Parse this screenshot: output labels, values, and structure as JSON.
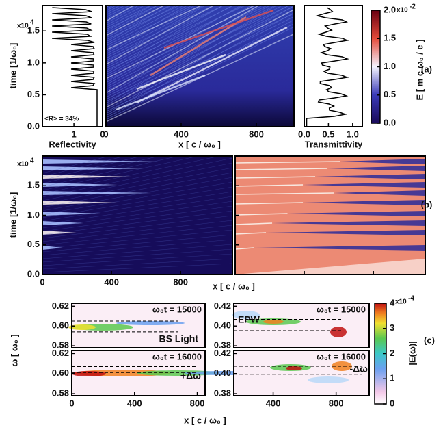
{
  "panels": {
    "a": {
      "label": "(a)",
      "y_label": "time [1/ω₀]",
      "y_multiplier": "x10",
      "y_exponent": "4",
      "reflectivity": {
        "x_label": "Reflectivity",
        "annotation": "<R> = 34%",
        "xlim": [
          2.1,
          0
        ],
        "xticks": [
          1,
          0
        ],
        "ylim": [
          0,
          1.9
        ],
        "yticks": [
          {
            "value": 0,
            "label": "0.0"
          },
          0.5,
          {
            "value": 1,
            "label": "1.0"
          },
          1.5
        ]
      },
      "field": {
        "x_label": "x [ c / ω₀ ]",
        "xlim": [
          0,
          1000
        ],
        "xticks": [
          0,
          400,
          800
        ]
      },
      "transmittivity": {
        "x_label": "Transmittivity",
        "xlim": [
          0,
          1.2
        ],
        "xticks": [
          {
            "value": 0,
            "label": "0.0"
          },
          0.5,
          {
            "value": 1,
            "label": "1.0"
          }
        ]
      },
      "colorbar": {
        "label": "E [ m c ω₀ / e ]",
        "multiplier": "x10",
        "exponent": "-2",
        "ylim": [
          0,
          2
        ],
        "yticks": [
          {
            "value": 0,
            "label": "0.0"
          },
          0.5,
          {
            "value": 1,
            "label": "1.0"
          },
          1.5,
          {
            "value": 2,
            "label": "2.0"
          }
        ]
      }
    },
    "b": {
      "label": "(b)",
      "y_label": "time [1/ω₀]",
      "y_multiplier": "x10",
      "y_exponent": "4",
      "x_label": "x [ c / ω₀ ]",
      "xlim": [
        0,
        1100
      ],
      "xticks": [
        0,
        400,
        800
      ],
      "ylim": [
        0,
        2
      ],
      "yticks": [
        {
          "value": 0,
          "label": "0.0"
        },
        0.5,
        {
          "value": 1,
          "label": "1.0"
        },
        1.5
      ]
    },
    "c": {
      "label": "(c)",
      "y_label": "ω [ ω₀ ]",
      "x_label": "x [ c / ω₀ ]",
      "subplots": [
        {
          "title": "ω₀t = 15000",
          "annotation": "BS Light",
          "xlim": [
            0,
            850
          ],
          "ylim": [
            0.578,
            0.623
          ],
          "yticks": [
            0.58,
            {
              "value": 0.6,
              "label": "0.60"
            },
            0.62
          ],
          "dashed": [
            0.605,
            0.594
          ]
        },
        {
          "title": "ω₀t = 16000",
          "annotation": "+Δω",
          "xlim": [
            0,
            850
          ],
          "ylim": [
            0.578,
            0.623
          ],
          "yticks": [
            0.58,
            {
              "value": 0.6,
              "label": "0.60"
            },
            0.62
          ],
          "dashed": [
            0.607,
            0.601
          ],
          "xticks": [
            0,
            400,
            800
          ]
        },
        {
          "title": "ω₀t = 15000",
          "annotation": "EPW",
          "xlim": [
            150,
            1010
          ],
          "ylim": [
            0.378,
            0.423
          ],
          "yticks": [
            0.38,
            {
              "value": 0.4,
              "label": "0.40"
            },
            0.42
          ],
          "dashed": [
            0.4067,
            0.3953
          ]
        },
        {
          "title": "ω₀t = 16000",
          "annotation": "-Δω",
          "xlim": [
            150,
            1010
          ],
          "ylim": [
            0.378,
            0.423
          ],
          "yticks": [
            0.38,
            {
              "value": 0.4,
              "label": "0.40"
            },
            0.42
          ],
          "dashed": [
            0.4073,
            0.3993
          ],
          "xticks": [
            400,
            800
          ]
        }
      ],
      "colorbar": {
        "label": "|E(ω)|",
        "multiplier": "x10",
        "exponent": "-4",
        "ylim": [
          0,
          4
        ],
        "yticks": [
          0,
          1,
          2,
          3,
          4
        ]
      }
    }
  }
}
